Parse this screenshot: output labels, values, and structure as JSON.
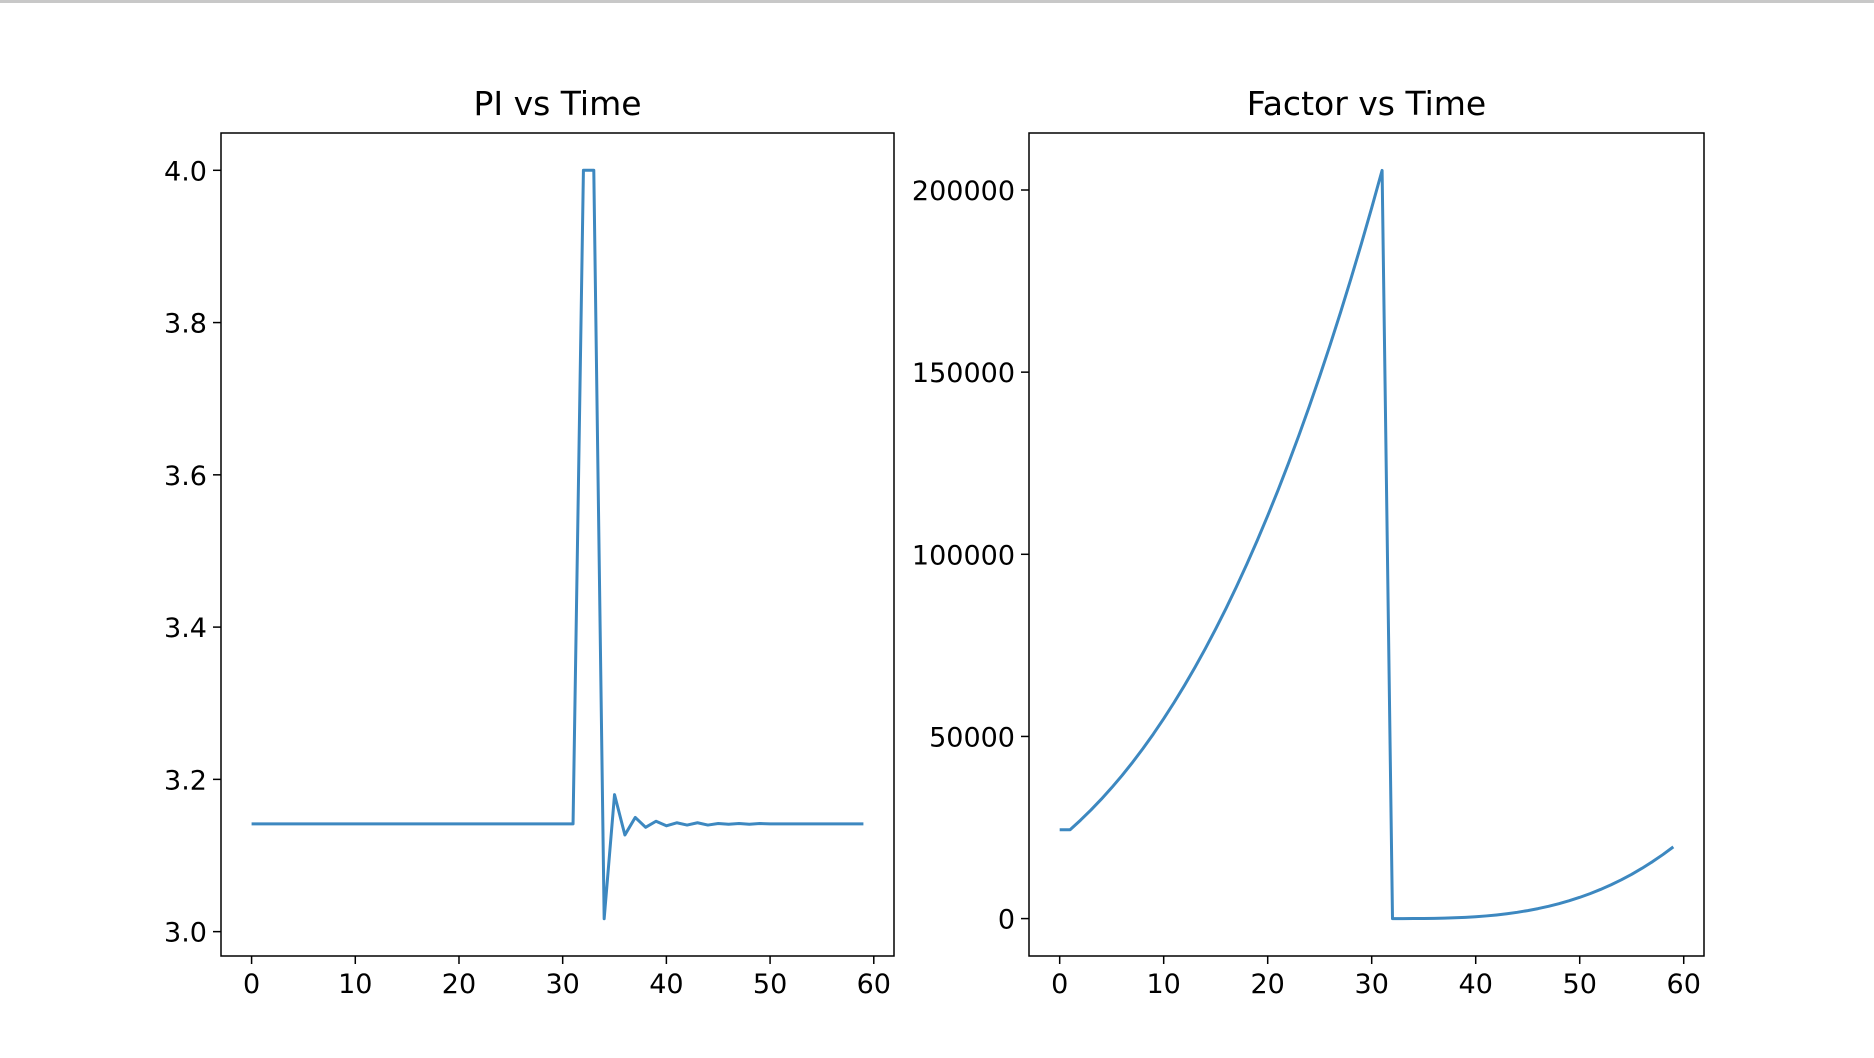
{
  "chart_data": [
    {
      "type": "line",
      "title": "PI vs Time",
      "color": "#3d88c0",
      "x": [
        0,
        1,
        2,
        3,
        4,
        5,
        6,
        7,
        8,
        9,
        10,
        11,
        12,
        13,
        14,
        15,
        16,
        17,
        18,
        19,
        20,
        21,
        22,
        23,
        24,
        25,
        26,
        27,
        28,
        29,
        30,
        31,
        32,
        33,
        34,
        35,
        36,
        37,
        38,
        39,
        40,
        41,
        42,
        43,
        44,
        45,
        46,
        47,
        48,
        49,
        50,
        51,
        52,
        53,
        54,
        55,
        56,
        57,
        58,
        59
      ],
      "values": [
        3.1416,
        3.1416,
        3.1416,
        3.1416,
        3.1416,
        3.1416,
        3.1416,
        3.1416,
        3.1416,
        3.1416,
        3.1416,
        3.1416,
        3.1416,
        3.1416,
        3.1416,
        3.1416,
        3.1416,
        3.1416,
        3.1416,
        3.1416,
        3.1416,
        3.1416,
        3.1416,
        3.1416,
        3.1416,
        3.1416,
        3.1416,
        3.1416,
        3.1416,
        3.1416,
        3.1416,
        3.1416,
        4.0,
        4.0,
        3.017,
        3.18,
        3.127,
        3.15,
        3.137,
        3.145,
        3.139,
        3.143,
        3.14,
        3.143,
        3.14,
        3.142,
        3.141,
        3.142,
        3.141,
        3.142,
        3.1416,
        3.1416,
        3.1416,
        3.1416,
        3.1416,
        3.1416,
        3.1416,
        3.1416,
        3.1416,
        3.1416
      ],
      "xlim": [
        -2.95,
        61.95
      ],
      "ylim": [
        2.968,
        4.049
      ],
      "xticks": [
        0,
        10,
        20,
        30,
        40,
        50,
        60
      ],
      "yticks": [
        {
          "value": 3,
          "label": "3.0"
        },
        3.2,
        3.4,
        3.6,
        3.8,
        {
          "value": 4,
          "label": "4.0"
        }
      ]
    },
    {
      "type": "line",
      "title": "Factor vs Time",
      "color": "#3d88c0",
      "x": [
        0,
        1,
        2,
        3,
        4,
        5,
        6,
        7,
        8,
        9,
        10,
        11,
        12,
        13,
        14,
        15,
        16,
        17,
        18,
        19,
        20,
        21,
        22,
        23,
        24,
        25,
        26,
        27,
        28,
        29,
        30,
        31,
        32,
        33,
        34,
        35,
        36,
        37,
        38,
        39,
        40,
        41,
        42,
        43,
        44,
        45,
        46,
        47,
        48,
        49,
        50,
        51,
        52,
        53,
        54,
        55,
        56,
        57,
        58,
        59
      ],
      "values": [
        24389,
        24389,
        27000,
        29791,
        32768,
        35937,
        39304,
        42875,
        46656,
        50653,
        54872,
        59319,
        64000,
        68921,
        74088,
        79507,
        85184,
        91125,
        97336,
        103823,
        110592,
        117649,
        125000,
        132651,
        140608,
        148877,
        157464,
        166375,
        175616,
        185193,
        195112,
        205379,
        0,
        1,
        8,
        27,
        64,
        125,
        216,
        343,
        512,
        729,
        1000,
        1331,
        1728,
        2197,
        2744,
        3375,
        4096,
        4913,
        5832,
        6859,
        8000,
        9261,
        10648,
        12167,
        13824,
        15625,
        17576,
        19683
      ],
      "xlim": [
        -2.95,
        61.95
      ],
      "ylim": [
        -10269,
        215648
      ],
      "xticks": [
        0,
        10,
        20,
        30,
        40,
        50,
        60
      ],
      "yticks": [
        0,
        50000,
        100000,
        150000,
        200000
      ]
    }
  ]
}
